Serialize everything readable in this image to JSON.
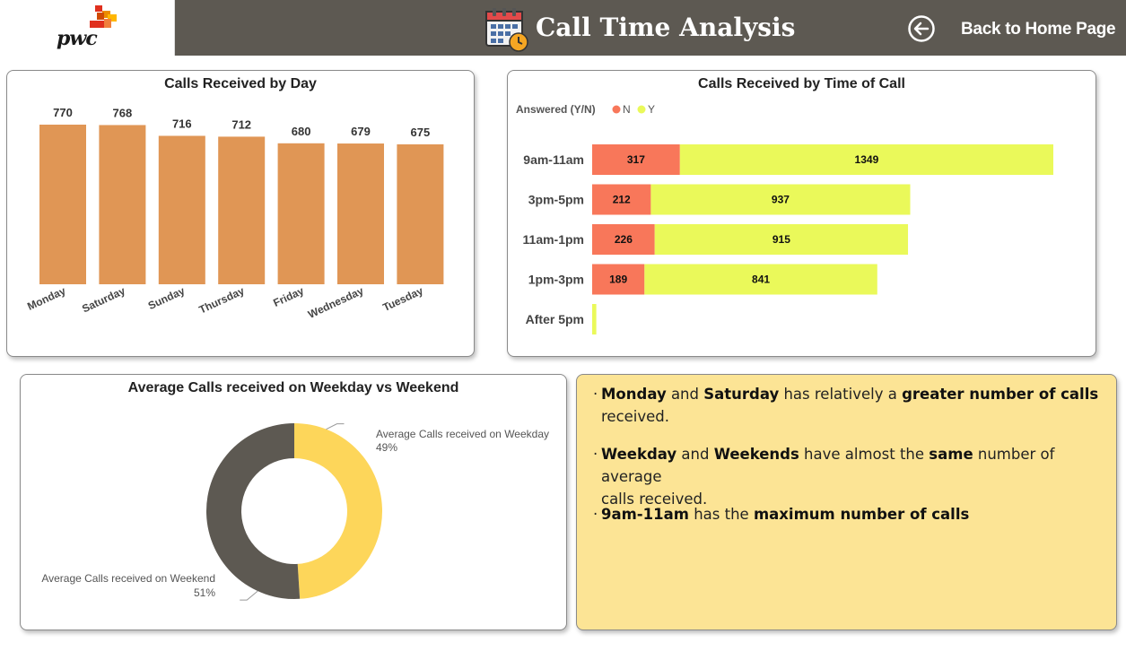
{
  "header": {
    "logo_text": "pwc",
    "title": "Call Time Analysis",
    "back_label": "Back to Home Page"
  },
  "colors": {
    "header_bg": "#5d5952",
    "bar_orange": "#e09655",
    "answered_n": "#f8775a",
    "answered_y": "#eaf95a",
    "donut_weekday": "#fdd65a",
    "donut_weekend": "#5d5952",
    "note_bg": "#fce495"
  },
  "charts": {
    "by_day": {
      "title": "Calls Received by Day"
    },
    "by_time": {
      "title": "Calls Received by Time of Call",
      "legend_title": "Answered (Y/N)",
      "legend_n": "N",
      "legend_y": "Y"
    },
    "weekday_weekend": {
      "title": "Average Calls received on Weekday vs Weekend"
    }
  },
  "chart_data": [
    {
      "type": "bar",
      "title": "Calls Received by Day",
      "categories": [
        "Monday",
        "Saturday",
        "Sunday",
        "Thursday",
        "Friday",
        "Wednesday",
        "Tuesday"
      ],
      "values": [
        770,
        768,
        716,
        712,
        680,
        679,
        675
      ],
      "xlabel": "",
      "ylabel": "",
      "ylim": [
        0,
        770
      ],
      "grid": false
    },
    {
      "type": "bar",
      "orientation": "horizontal",
      "stacked": true,
      "title": "Calls Received by Time of Call",
      "legend_title": "Answered (Y/N)",
      "legend_position": "top-left",
      "categories": [
        "9am-11am",
        "3pm-5pm",
        "11am-1pm",
        "1pm-3pm",
        "After 5pm"
      ],
      "series": [
        {
          "name": "N",
          "values": [
            317,
            212,
            226,
            189,
            0
          ]
        },
        {
          "name": "Y",
          "values": [
            1349,
            937,
            915,
            841,
            15
          ]
        }
      ],
      "grid": false
    },
    {
      "type": "pie",
      "donut": true,
      "title": "Average Calls received on Weekday vs Weekend",
      "slices": [
        {
          "label": "Average Calls received on Weekday",
          "value": 49,
          "display": "49%"
        },
        {
          "label": "Average Calls received on Weekend",
          "value": 51,
          "display": "51%"
        }
      ]
    }
  ],
  "notes": {
    "n1": {
      "p1": "Monday",
      "p2": " and ",
      "p3": "Saturday",
      "p4": " has relatively a ",
      "p5": "greater number of calls",
      "p6": "received."
    },
    "n2": {
      "p1": "Weekday",
      "p2": " and ",
      "p3": "Weekends",
      "p4": " have almost the ",
      "p5": "same",
      "p6": " number of average",
      "p7": "calls received."
    },
    "n3": {
      "p1": "9am-11am",
      "p2": " has the ",
      "p3": "maximum number of calls"
    }
  }
}
